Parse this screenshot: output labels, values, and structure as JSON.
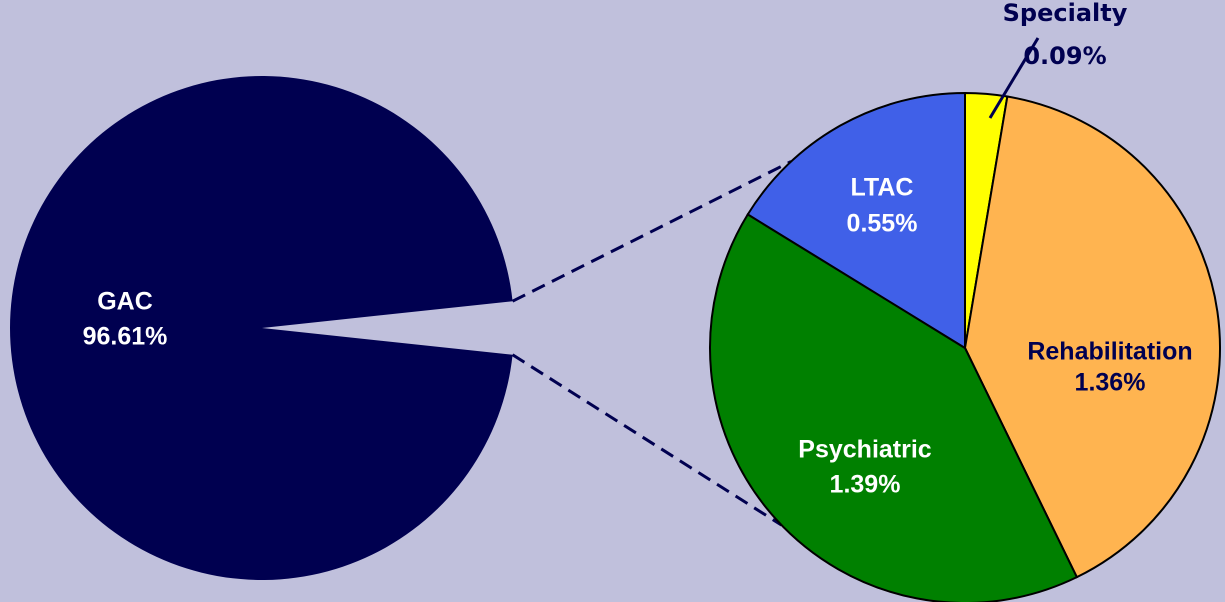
{
  "chart_data": [
    {
      "type": "pie",
      "categories": [
        "GAC"
      ],
      "values": [
        96.61
      ],
      "value_labels": [
        "96.61%"
      ],
      "colors": [
        "#000050"
      ]
    },
    {
      "type": "pie",
      "categories": [
        "Specialty",
        "Rehabilitation",
        "Psychiatric",
        "LTAC"
      ],
      "values": [
        0.09,
        1.36,
        1.39,
        0.55
      ],
      "value_labels": [
        "0.09%",
        "1.36%",
        "1.39%",
        "0.55%"
      ],
      "colors": [
        "#ffff00",
        "#ffb450",
        "#008000",
        "#4060e8"
      ]
    }
  ]
}
